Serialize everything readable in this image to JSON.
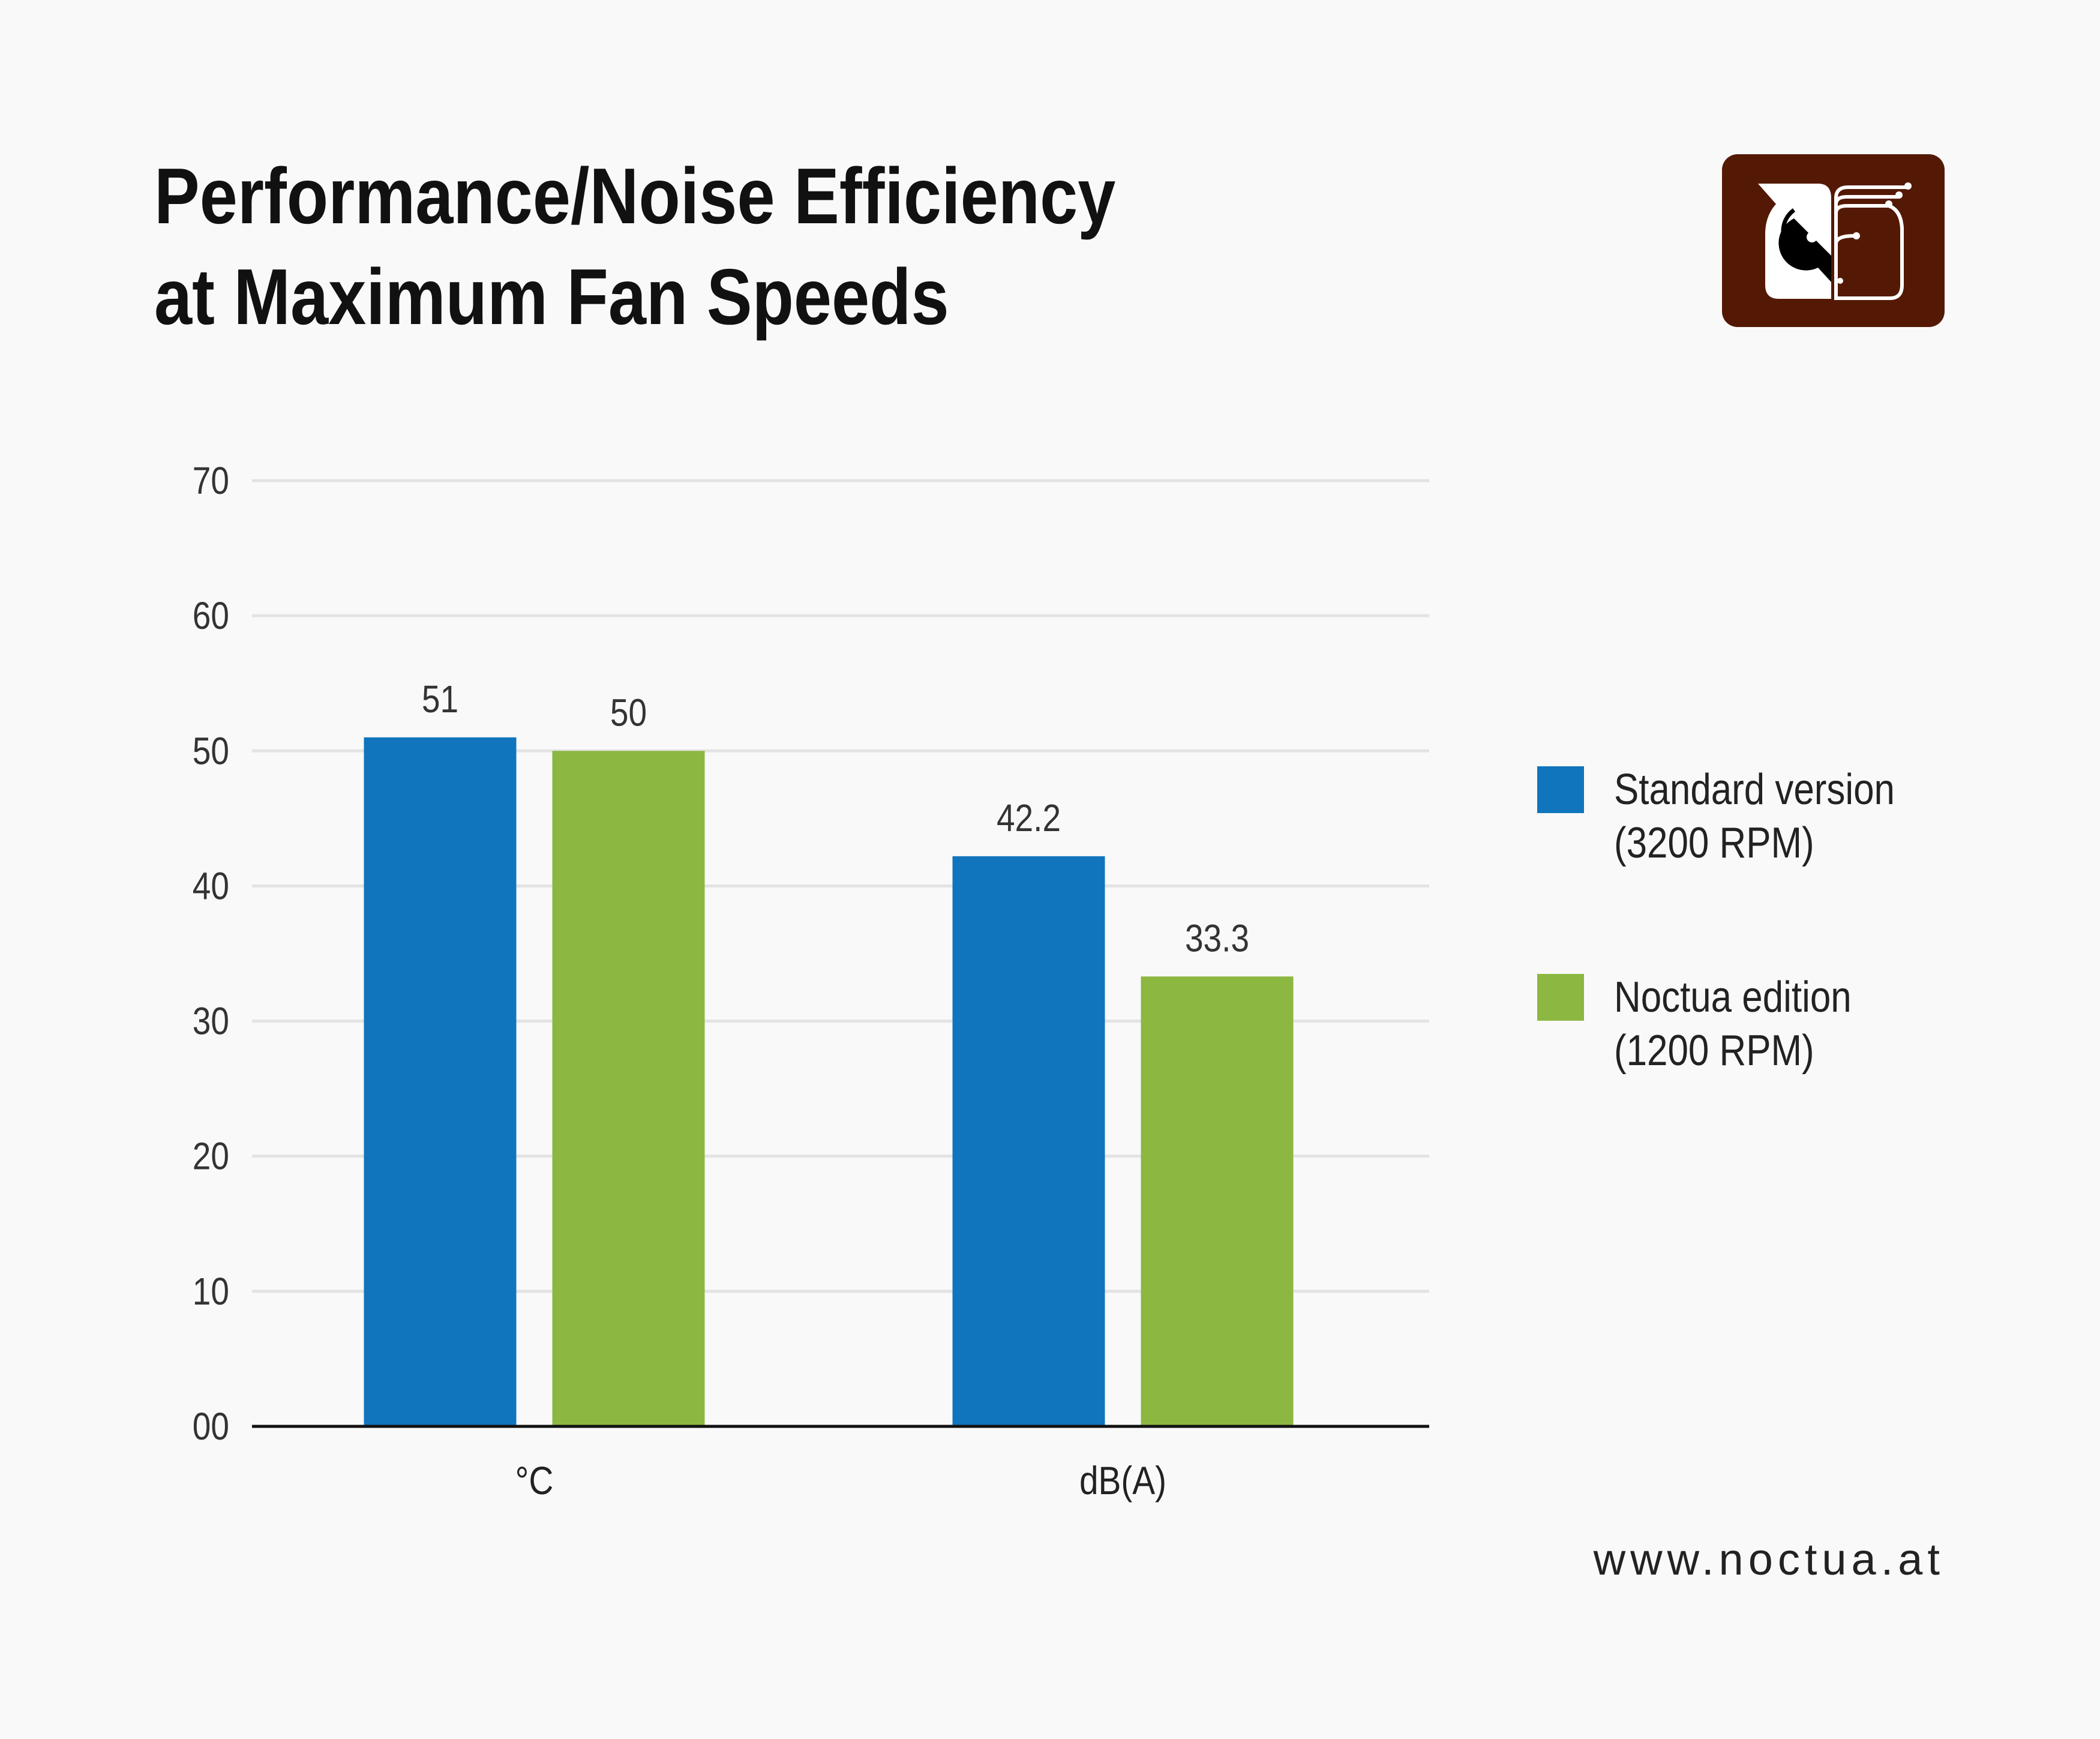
{
  "title_lines": [
    "Performance/Noise Efficiency",
    "at Maximum Fan Speeds"
  ],
  "logo": {
    "name": "noctua-owl-logo",
    "bg_color": "#541905"
  },
  "footer_url": "www.noctua.at",
  "chart_data": {
    "type": "bar",
    "title": "Performance/Noise Efficiency at Maximum Fan Speeds",
    "categories": [
      "°C",
      "dB(A)"
    ],
    "series": [
      {
        "name": "Standard version (3200 RPM)",
        "name_lines": [
          "Standard version",
          "(3200 RPM)"
        ],
        "color": "#1075bc",
        "values": [
          51,
          42.2
        ],
        "labels": [
          "51",
          "42.2"
        ]
      },
      {
        "name": "Noctua edition (1200 RPM)",
        "name_lines": [
          "Noctua edition",
          "(1200 RPM)"
        ],
        "color": "#8cb741",
        "values": [
          50,
          33.3
        ],
        "labels": [
          "50",
          "33.3"
        ]
      }
    ],
    "ylim": [
      0,
      70
    ],
    "yticks": [
      0,
      10,
      20,
      30,
      40,
      50,
      60,
      70
    ],
    "ytick_labels": [
      "00",
      "10",
      "20",
      "30",
      "40",
      "50",
      "60",
      "70"
    ],
    "grid": true,
    "legend_position": "right",
    "xlabel": "",
    "ylabel": ""
  }
}
